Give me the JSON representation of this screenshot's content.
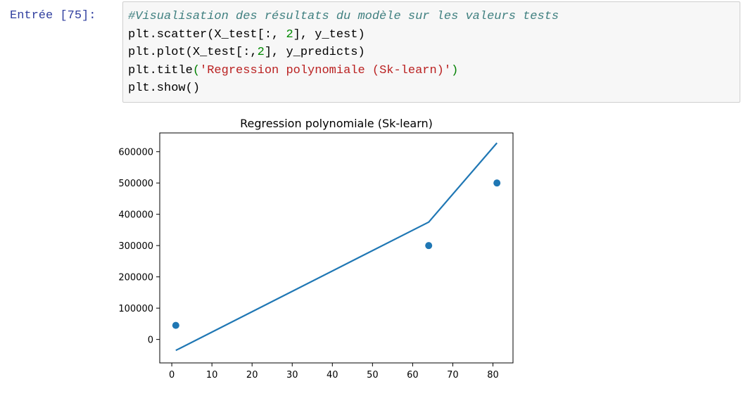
{
  "cell": {
    "prompt": "Entrée [75]:",
    "code": {
      "comment": "#Visualisation des résultats du modèle sur les valeurs tests",
      "line2_a": "plt.scatter(X_test[:, ",
      "line2_num": "2",
      "line2_b": "], y_test)",
      "line3_a": "plt.plot(X_test[:,",
      "line3_num": "2",
      "line3_b": "], y_predicts)",
      "line4_a": "plt.title",
      "line4_open": "(",
      "line4_str": "'Regression polynomiale (Sk-learn)'",
      "line4_close": ")",
      "line5": "plt.show()"
    }
  },
  "chart_data": {
    "type": "scatter",
    "title": "Regression polynomiale (Sk-learn)",
    "xlabel": "",
    "ylabel": "",
    "xlim": [
      -3,
      85
    ],
    "ylim": [
      -75000,
      660000
    ],
    "x_ticks": [
      0,
      10,
      20,
      30,
      40,
      50,
      60,
      70,
      80
    ],
    "y_ticks": [
      0,
      100000,
      200000,
      300000,
      400000,
      500000,
      600000
    ],
    "grid": false,
    "series": [
      {
        "kind": "scatter",
        "color": "#1f77b4",
        "x": [
          1,
          64,
          81
        ],
        "y": [
          45000,
          300000,
          500000
        ]
      },
      {
        "kind": "line",
        "color": "#1f77b4",
        "x": [
          1,
          64,
          81
        ],
        "y": [
          -35000,
          375000,
          628000
        ]
      }
    ]
  }
}
